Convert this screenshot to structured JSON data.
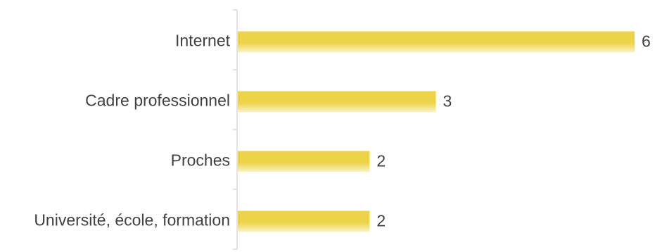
{
  "chart_data": {
    "type": "bar",
    "orientation": "horizontal",
    "categories": [
      "Internet",
      "Cadre professionnel",
      "Proches",
      "Université, école, formation"
    ],
    "values": [
      6,
      3,
      2,
      2
    ],
    "title": "",
    "xlabel": "",
    "ylabel": "",
    "xlim": [
      0,
      6
    ],
    "grid": false,
    "legend": "none",
    "data_labels": [
      "6",
      "3",
      "2",
      "2"
    ]
  },
  "colors": {
    "bar_top": "#ecd348",
    "bar_bottom": "#fbf3c9",
    "axis": "#d9d9d9",
    "text": "#404040"
  }
}
